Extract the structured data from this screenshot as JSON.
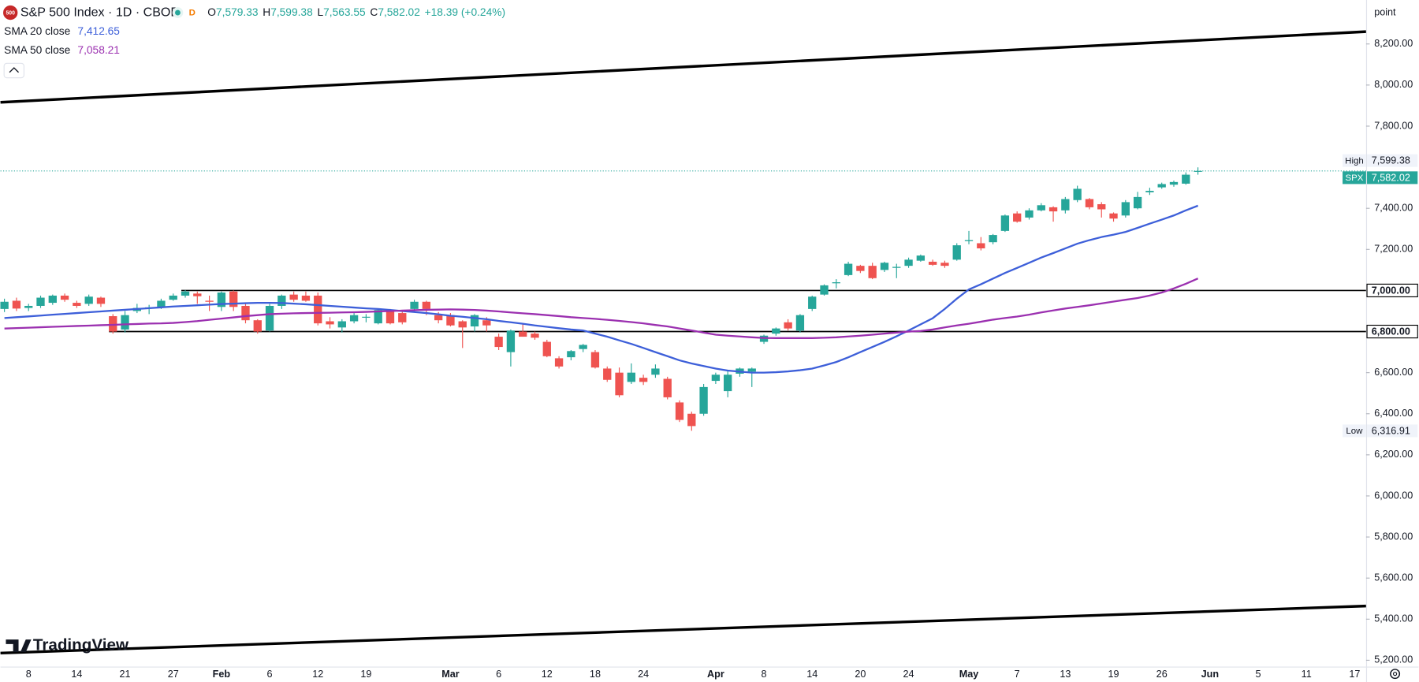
{
  "chart_data": {
    "type": "candlestick",
    "symbol_icon": "500",
    "title": "S&P 500 Index · 1D · CBOE",
    "badge": "D",
    "ohlc": [
      {
        "key": "O",
        "value": "7,579.33"
      },
      {
        "key": "H",
        "value": "7,599.38"
      },
      {
        "key": "L",
        "value": "7,563.55"
      },
      {
        "key": "C",
        "value": "7,582.02"
      }
    ],
    "change": "+18.39 (+0.24%)",
    "unit_label": "point",
    "watermark": "TradingView",
    "up_color": "#26a69a",
    "down_color": "#ef5350",
    "categories": [
      null,
      null,
      "8",
      null,
      null,
      null,
      "14",
      null,
      null,
      null,
      "21",
      null,
      null,
      null,
      "27",
      null,
      null,
      null,
      "Feb",
      null,
      null,
      null,
      "6",
      null,
      null,
      null,
      "12",
      null,
      null,
      null,
      "19",
      null,
      null,
      null,
      null,
      null,
      null,
      "Mar",
      null,
      null,
      null,
      "6",
      null,
      null,
      null,
      "12",
      null,
      null,
      null,
      "18",
      null,
      null,
      null,
      "24",
      null,
      null,
      null,
      null,
      null,
      "Apr",
      null,
      null,
      null,
      "8",
      null,
      null,
      null,
      "14",
      null,
      null,
      null,
      "20",
      null,
      null,
      null,
      "24",
      null,
      null,
      null,
      null,
      "May",
      null,
      null,
      null,
      "7",
      null,
      null,
      null,
      "13",
      null,
      null,
      null,
      "19",
      null,
      null,
      null,
      "26",
      null,
      null,
      null,
      "Jun",
      null,
      null,
      null,
      "5",
      null,
      null,
      null,
      "11",
      null,
      null,
      null,
      "17"
    ],
    "candles": {
      "open": [
        6910,
        6950,
        6915,
        6925,
        6940,
        6975,
        6940,
        6935,
        6965,
        6875,
        6810,
        6900,
        6912,
        6920,
        6955,
        6975,
        6985,
        6950,
        6920,
        6995,
        6925,
        6855,
        6805,
        6925,
        6980,
        6975,
        6975,
        6850,
        6820,
        6850,
        6870,
        6840,
        6905,
        6890,
        6910,
        6945,
        6880,
        6880,
        6850,
        6825,
        6855,
        6775,
        6700,
        6800,
        6790,
        6750,
        6670,
        6675,
        6715,
        6700,
        6620,
        6600,
        6555,
        6575,
        6590,
        6570,
        6455,
        6400,
        6400,
        6560,
        6510,
        6595,
        6605,
        6750,
        6790,
        6845,
        6805,
        6910,
        6980,
        7035,
        7075,
        7120,
        7120,
        7100,
        7110,
        7120,
        7145,
        7140,
        7135,
        7150,
        7240,
        7230,
        7235,
        7290,
        7375,
        7355,
        7390,
        7405,
        7390,
        7440,
        7445,
        7420,
        7375,
        7365,
        7400,
        7478,
        7502,
        7515,
        7520,
        7579.33,
        null,
        null,
        null,
        null,
        null,
        null,
        null,
        null,
        null,
        null,
        null,
        null,
        null
      ],
      "high": [
        6960,
        6965,
        6935,
        6975,
        6980,
        6985,
        6950,
        6980,
        6970,
        6885,
        6900,
        6935,
        6930,
        6960,
        6985,
        7002,
        6995,
        6975,
        6995,
        7000,
        6935,
        6860,
        6935,
        6980,
        6995,
        6995,
        6990,
        6870,
        6860,
        6890,
        6885,
        6910,
        6910,
        6900,
        6955,
        6950,
        6895,
        6890,
        6855,
        6885,
        6870,
        6790,
        6810,
        6840,
        6800,
        6760,
        6680,
        6710,
        6740,
        6710,
        6630,
        6625,
        6645,
        6590,
        6640,
        6580,
        6465,
        6410,
        6545,
        6600,
        6610,
        6625,
        6625,
        6785,
        6820,
        6860,
        6885,
        6975,
        7030,
        7055,
        7140,
        7125,
        7135,
        7140,
        7130,
        7160,
        7175,
        7150,
        7145,
        7230,
        7290,
        7260,
        7275,
        7370,
        7385,
        7400,
        7425,
        7410,
        7455,
        7510,
        7450,
        7430,
        7380,
        7440,
        7480,
        7500,
        7525,
        7535,
        7575,
        7599.38,
        null,
        null,
        null,
        null,
        null,
        null,
        null,
        null,
        null,
        null,
        null,
        null,
        null
      ],
      "low": [
        6895,
        6900,
        6900,
        6915,
        6930,
        6945,
        6915,
        6925,
        6920,
        6790,
        6795,
        6890,
        6885,
        6910,
        6950,
        6965,
        6935,
        6900,
        6900,
        6900,
        6840,
        6790,
        6800,
        6910,
        6945,
        6945,
        6830,
        6815,
        6795,
        6840,
        6845,
        6835,
        6835,
        6835,
        6895,
        6880,
        6840,
        6825,
        6720,
        6800,
        6800,
        6710,
        6630,
        6775,
        6760,
        6675,
        6620,
        6660,
        6700,
        6620,
        6555,
        6480,
        6545,
        6540,
        6575,
        6470,
        6360,
        6316.91,
        6390,
        6545,
        6480,
        6580,
        6530,
        6740,
        6780,
        6805,
        6795,
        6900,
        6975,
        7010,
        7070,
        7085,
        7055,
        7090,
        7060,
        7110,
        7140,
        7120,
        7110,
        7145,
        7225,
        7195,
        7225,
        7285,
        7330,
        7345,
        7385,
        7335,
        7375,
        7430,
        7395,
        7355,
        7335,
        7355,
        7395,
        7465,
        7495,
        7505,
        7515,
        7563.55,
        null,
        null,
        null,
        null,
        null,
        null,
        null,
        null,
        null,
        null,
        null,
        null,
        null
      ],
      "close": [
        6945,
        6912,
        6925,
        6965,
        6975,
        6955,
        6925,
        6970,
        6935,
        6800,
        6880,
        6915,
        6918,
        6950,
        6975,
        6995,
        6972,
        6945,
        6990,
        6920,
        6855,
        6800,
        6925,
        6975,
        6955,
        6950,
        6840,
        6835,
        6850,
        6880,
        6872,
        6905,
        6840,
        6845,
        6945,
        6910,
        6855,
        6830,
        6820,
        6880,
        6830,
        6725,
        6805,
        6775,
        6770,
        6680,
        6630,
        6705,
        6735,
        6625,
        6565,
        6490,
        6600,
        6555,
        6620,
        6480,
        6370,
        6340,
        6530,
        6590,
        6590,
        6620,
        6620,
        6780,
        6815,
        6815,
        6880,
        6970,
        7025,
        7040,
        7130,
        7095,
        7060,
        7135,
        7115,
        7150,
        7170,
        7125,
        7120,
        7220,
        7245,
        7205,
        7270,
        7365,
        7335,
        7390,
        7415,
        7385,
        7445,
        7495,
        7405,
        7395,
        7350,
        7430,
        7455,
        7485,
        7518,
        7528,
        7563.63,
        7582.02,
        null,
        null,
        null,
        null,
        null,
        null,
        null,
        null,
        null,
        null,
        null,
        null,
        null
      ]
    },
    "series": [
      {
        "name": "SMA 20 close",
        "color": "#3d5fd9",
        "legend_value": "7,412.65",
        "values": [
          6866,
          6870,
          6874,
          6878,
          6882,
          6886,
          6890,
          6894,
          6898,
          6902,
          6906,
          6910,
          6914,
          6918,
          6922,
          6925,
          6928,
          6931,
          6934,
          6936,
          6938,
          6940,
          6940,
          6939,
          6936,
          6933,
          6929,
          6925,
          6921,
          6917,
          6913,
          6910,
          6905,
          6900,
          6895,
          6890,
          6884,
          6877,
          6872,
          6866,
          6860,
          6852,
          6845,
          6838,
          6830,
          6823,
          6816,
          6810,
          6805,
          6790,
          6775,
          6757,
          6740,
          6720,
          6700,
          6680,
          6660,
          6645,
          6632,
          6620,
          6610,
          6605,
          6600,
          6600,
          6602,
          6606,
          6612,
          6620,
          6635,
          6652,
          6675,
          6700,
          6725,
          6750,
          6777,
          6805,
          6835,
          6865,
          6910,
          6960,
          7005,
          7030,
          7058,
          7085,
          7110,
          7135,
          7160,
          7182,
          7205,
          7228,
          7245,
          7260,
          7272,
          7285,
          7305,
          7325,
          7345,
          7365,
          7390,
          7412.65,
          null,
          null,
          null,
          null,
          null,
          null,
          null,
          null,
          null,
          null,
          null,
          null,
          null
        ]
      },
      {
        "name": "SMA 50 close",
        "color": "#9b30b0",
        "legend_value": "7,058.21",
        "values": [
          6815,
          6817,
          6819,
          6821,
          6823,
          6825,
          6827,
          6829,
          6831,
          6833,
          6835,
          6837,
          6839,
          6840,
          6842,
          6846,
          6851,
          6857,
          6863,
          6869,
          6875,
          6880,
          6885,
          6887,
          6889,
          6890,
          6891,
          6892,
          6893,
          6894,
          6896,
          6898,
          6900,
          6902,
          6904,
          6906,
          6907,
          6908,
          6907,
          6905,
          6902,
          6898,
          6893,
          6889,
          6885,
          6880,
          6875,
          6870,
          6866,
          6862,
          6857,
          6852,
          6846,
          6840,
          6832,
          6825,
          6815,
          6805,
          6795,
          6785,
          6780,
          6776,
          6772,
          6769,
          6768,
          6768,
          6768,
          6768,
          6770,
          6772,
          6776,
          6780,
          6785,
          6790,
          6795,
          6800,
          6803,
          6810,
          6820,
          6830,
          6838,
          6848,
          6858,
          6866,
          6873,
          6882,
          6893,
          6903,
          6912,
          6920,
          6928,
          6937,
          6946,
          6955,
          6963,
          6975,
          6990,
          7010,
          7033,
          7058.21,
          null,
          null,
          null,
          null,
          null,
          null,
          null,
          null,
          null,
          null,
          null,
          null,
          null
        ]
      }
    ],
    "hlines": [
      {
        "value": 7000,
        "label": "7,000.00"
      },
      {
        "value": 6800,
        "label": "6,800.00"
      }
    ],
    "trendlines": [
      {
        "start": 7916,
        "end": 8260
      },
      {
        "start": 5235,
        "end": 5464
      }
    ],
    "price_markers": [
      {
        "name": "High",
        "value": 7599.38,
        "label": "7,599.38"
      },
      {
        "name": "SPX",
        "value": 7582.02,
        "label": "7,582.02"
      },
      {
        "name": "Low",
        "value": 6316.91,
        "label": "6,316.91"
      }
    ],
    "ylim": [
      5169,
      8414
    ],
    "yticks": [
      {
        "value": 8200,
        "label": "8,200.00"
      },
      {
        "value": 8000,
        "label": "8,000.00"
      },
      {
        "value": 7800,
        "label": "7,800.00"
      },
      {
        "value": 7400,
        "label": "7,400.00"
      },
      {
        "value": 7200,
        "label": "7,200.00"
      },
      {
        "value": 6600,
        "label": "6,600.00"
      },
      {
        "value": 6400,
        "label": "6,400.00"
      },
      {
        "value": 6200,
        "label": "6,200.00"
      },
      {
        "value": 6000,
        "label": "6,000.00"
      },
      {
        "value": 5800,
        "label": "5,800.00"
      },
      {
        "value": 5600,
        "label": "5,600.00"
      },
      {
        "value": 5400,
        "label": "5,400.00"
      },
      {
        "value": 5200,
        "label": "5,200.00"
      }
    ],
    "grid": false
  }
}
